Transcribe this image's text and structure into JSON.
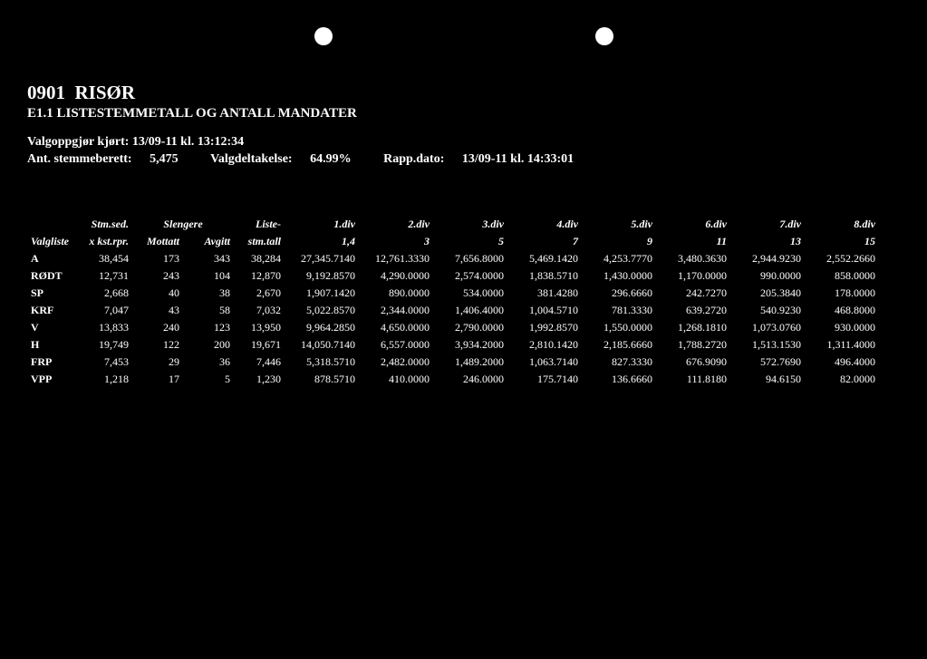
{
  "header": {
    "code": "0901",
    "name": "RISØR",
    "subtitle": "E1.1 LISTESTEMMETALL OG ANTALL MANDATER",
    "valgoppgjor_label": "Valgoppgjør kjørt:",
    "valgoppgjor": "13/09-11 kl. 13:12:34",
    "ant_label": "Ant. stemmeberett:",
    "ant": "5,475",
    "deltakelse_label": "Valgdeltakelse:",
    "deltakelse": "64.99%",
    "rapp_label": "Rapp.dato:",
    "rapp": "13/09-11 kl. 14:33:01"
  },
  "columns": {
    "valgliste": "Valgliste",
    "stm_sed": "Stm.sed.",
    "x_kstrpr": "x kst.rpr.",
    "slengere": "Slengere",
    "mottatt": "Mottatt",
    "avgitt": "Avgitt",
    "liste": "Liste-",
    "stm_tall": "stm.tall",
    "divs_top": [
      "1.div",
      "2.div",
      "3.div",
      "4.div",
      "5.div",
      "6.div",
      "7.div",
      "8.div"
    ],
    "divs_bot": [
      "1,4",
      "3",
      "5",
      "7",
      "9",
      "11",
      "13",
      "15"
    ]
  },
  "rows": [
    {
      "p": "A",
      "sed": "38,454",
      "mot": "173",
      "avg": "343",
      "tall": "38,284",
      "d": [
        "27,345.7140",
        "12,761.3330",
        "7,656.8000",
        "5,469.1420",
        "4,253.7770",
        "3,480.3630",
        "2,944.9230",
        "2,552.2660"
      ]
    },
    {
      "p": "RØDT",
      "sed": "12,731",
      "mot": "243",
      "avg": "104",
      "tall": "12,870",
      "d": [
        "9,192.8570",
        "4,290.0000",
        "2,574.0000",
        "1,838.5710",
        "1,430.0000",
        "1,170.0000",
        "990.0000",
        "858.0000"
      ]
    },
    {
      "p": "SP",
      "sed": "2,668",
      "mot": "40",
      "avg": "38",
      "tall": "2,670",
      "d": [
        "1,907.1420",
        "890.0000",
        "534.0000",
        "381.4280",
        "296.6660",
        "242.7270",
        "205.3840",
        "178.0000"
      ]
    },
    {
      "p": "KRF",
      "sed": "7,047",
      "mot": "43",
      "avg": "58",
      "tall": "7,032",
      "d": [
        "5,022.8570",
        "2,344.0000",
        "1,406.4000",
        "1,004.5710",
        "781.3330",
        "639.2720",
        "540.9230",
        "468.8000"
      ]
    },
    {
      "p": "V",
      "sed": "13,833",
      "mot": "240",
      "avg": "123",
      "tall": "13,950",
      "d": [
        "9,964.2850",
        "4,650.0000",
        "2,790.0000",
        "1,992.8570",
        "1,550.0000",
        "1,268.1810",
        "1,073.0760",
        "930.0000"
      ]
    },
    {
      "p": "H",
      "sed": "19,749",
      "mot": "122",
      "avg": "200",
      "tall": "19,671",
      "d": [
        "14,050.7140",
        "6,557.0000",
        "3,934.2000",
        "2,810.1420",
        "2,185.6660",
        "1,788.2720",
        "1,513.1530",
        "1,311.4000"
      ]
    },
    {
      "p": "FRP",
      "sed": "7,453",
      "mot": "29",
      "avg": "36",
      "tall": "7,446",
      "d": [
        "5,318.5710",
        "2,482.0000",
        "1,489.2000",
        "1,063.7140",
        "827.3330",
        "676.9090",
        "572.7690",
        "496.4000"
      ]
    },
    {
      "p": "VPP",
      "sed": "1,218",
      "mot": "17",
      "avg": "5",
      "tall": "1,230",
      "d": [
        "878.5710",
        "410.0000",
        "246.0000",
        "175.7140",
        "136.6660",
        "111.8180",
        "94.6150",
        "82.0000"
      ]
    }
  ]
}
